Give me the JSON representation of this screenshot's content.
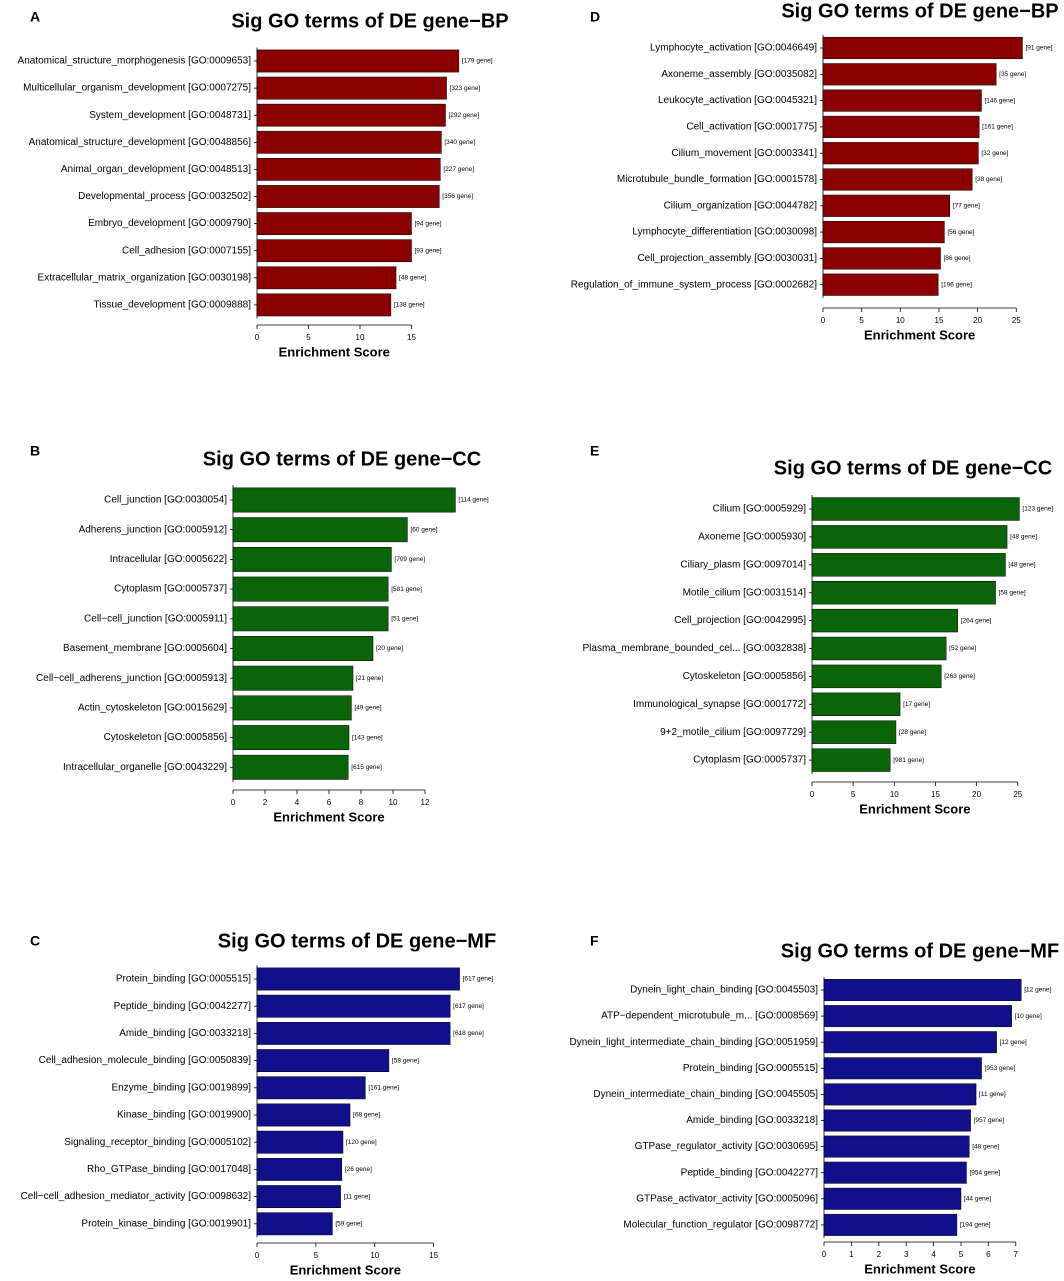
{
  "chart_data": [
    {
      "type": "bar",
      "panel": "A",
      "title": "Sig GO terms of DE gene−BP",
      "xlabel": "Enrichment Score",
      "color": "#8b0000",
      "categories": [
        "Anatomical_structure_morphogenesis [GO:0009653]",
        "Multicellular_organism_development [GO:0007275]",
        "System_development [GO:0048731]",
        "Anatomical_structure_development [GO:0048856]",
        "Animal_organ_development [GO:0048513]",
        "Developmental_process [GO:0032502]",
        "Embryo_development [GO:0009790]",
        "Cell_adhesion [GO:0007155]",
        "Extracellular_matrix_organization [GO:0030198]",
        "Tissue_development [GO:0009888]"
      ],
      "values": [
        19.6,
        18.4,
        18.3,
        17.9,
        17.8,
        17.7,
        15.0,
        15.0,
        13.5,
        13.0
      ],
      "annotations": [
        "[179 gene]",
        "[323 gene]",
        "[292 gene]",
        "[340 gene]",
        "[227 gene]",
        "[356 gene]",
        "[94 gene]",
        "[93 gene]",
        "[48 gene]",
        "[138 gene]"
      ],
      "xlim": [
        0,
        20
      ],
      "xticks": [
        0,
        5,
        10,
        15
      ]
    },
    {
      "type": "bar",
      "panel": "B",
      "title": "Sig GO terms of DE gene−CC",
      "xlabel": "Enrichment Score",
      "color": "#0a640a",
      "categories": [
        "Cell_junction [GO:0030054]",
        "Adherens_junction [GO:0005912]",
        "Intracellular [GO:0005622]",
        "Cytoplasm [GO:0005737]",
        "Cell−cell_junction [GO:0005911]",
        "Basement_membrane [GO:0005604]",
        "Cell−cell_adherens_junction [GO:0005913]",
        "Actin_cytoskeleton [GO:0015629]",
        "Cytoskeleton [GO:0005856]",
        "Intracellular_organelle [GO:0043229]"
      ],
      "values": [
        13.9,
        10.9,
        9.9,
        9.7,
        9.7,
        8.75,
        7.5,
        7.4,
        7.25,
        7.2
      ],
      "annotations": [
        "[114 gene]",
        "[60 gene]",
        "[709 gene]",
        "[581 gene]",
        "[51 gene]",
        "[20 gene]",
        "[21 gene]",
        "[49 gene]",
        "[143 gene]",
        "[615 gene]"
      ],
      "xlim": [
        0,
        14
      ],
      "xticks": [
        0,
        2,
        4,
        6,
        8,
        10,
        12
      ]
    },
    {
      "type": "bar",
      "panel": "C",
      "title": "Sig GO terms of DE gene−MF",
      "xlabel": "Enrichment Score",
      "color": "#10108c",
      "categories": [
        "Protein_binding [GO:0005515]",
        "Peptide_binding [GO:0042277]",
        "Amide_binding [GO:0033218]",
        "Cell_adhesion_molecule_binding [GO:0050839]",
        "Enzyme_binding [GO:0019899]",
        "Kinase_binding [GO:0019900]",
        "Signaling_receptor_binding [GO:0005102]",
        "Rho_GTPase_binding [GO:0017048]",
        "Cell−cell_adhesion_mediator_activity [GO:0098632]",
        "Protein_kinase_binding [GO:0019901]"
      ],
      "values": [
        17.2,
        16.4,
        16.4,
        11.2,
        9.2,
        7.9,
        7.3,
        7.2,
        7.1,
        6.4
      ],
      "annotations": [
        "[617 gene]",
        "[617 gene]",
        "[618 gene]",
        "[58 gene]",
        "[161 gene]",
        "[68 gene]",
        "[120 gene]",
        "[26 gene]",
        "[11 gene]",
        "[59 gene]"
      ],
      "xlim": [
        0,
        18
      ],
      "xticks": [
        0,
        5,
        10,
        15
      ]
    },
    {
      "type": "bar",
      "panel": "D",
      "title": "Sig GO terms of DE gene−BP",
      "xlabel": "Enrichment Score",
      "color": "#8b0000",
      "categories": [
        "Lymphocyte_activation [GO:0046649]",
        "Axoneme_assembly [GO:0035082]",
        "Leukocyte_activation [GO:0045321]",
        "Cell_activation [GO:0001775]",
        "Cilium_movement [GO:0003341]",
        "Microtubule_bundle_formation [GO:0001578]",
        "Cilium_organization [GO:0044782]",
        "Lymphocyte_differentiation [GO:0030098]",
        "Cell_projection_assembly [GO:0030031]",
        "Regulation_of_immune_system_process [GO:0002682]"
      ],
      "values": [
        25.8,
        22.4,
        20.5,
        20.2,
        20.1,
        19.3,
        16.4,
        15.7,
        15.2,
        14.9
      ],
      "annotations": [
        "[91 gene]",
        "[35 gene]",
        "[146 gene]",
        "[161 gene]",
        "[32 gene]",
        "[38 gene]",
        "[77 gene]",
        "[56 gene]",
        "[86 gene]",
        "[196 gene]"
      ],
      "xlim": [
        0,
        26
      ],
      "xticks": [
        0,
        5,
        10,
        15,
        20,
        25
      ]
    },
    {
      "type": "bar",
      "panel": "E",
      "title": "Sig GO terms of DE gene−CC",
      "xlabel": "Enrichment Score",
      "color": "#0a640a",
      "categories": [
        "Cilium [GO:0005929]",
        "Axoneme [GO:0005930]",
        "Ciliary_plasm [GO:0097014]",
        "Motile_cilium [GO:0031514]",
        "Cell_projection [GO:0042995]",
        "Plasma_membrane_bounded_cel... [GO:0032838]",
        "Cytoskeleton [GO:0005856]",
        "Immunological_synapse [GO:0001772]",
        "9+2_motile_cilium [GO:0097729]",
        "Cytoplasm [GO:0005737]"
      ],
      "values": [
        25.2,
        23.7,
        23.5,
        22.3,
        17.7,
        16.3,
        15.7,
        10.7,
        10.2,
        9.5
      ],
      "annotations": [
        "[123 gene]",
        "[48 gene]",
        "[48 gene]",
        "[58 gene]",
        "[264 gene]",
        "[52 gene]",
        "[263 gene]",
        "[17 gene]",
        "[28 gene]",
        "[981 gene]"
      ],
      "xlim": [
        0,
        26
      ],
      "xticks": [
        0,
        5,
        10,
        15,
        20,
        25
      ]
    },
    {
      "type": "bar",
      "panel": "F",
      "title": "Sig GO terms of DE gene−MF",
      "xlabel": "Enrichment Score",
      "color": "#10108c",
      "categories": [
        "Dynein_light_chain_binding [GO:0045503]",
        "ATP−dependent_microtubule_m... [GO:0008569]",
        "Dynein_light_intermediate_chain_binding [GO:0051959]",
        "Protein_binding [GO:0005515]",
        "Dynein_intermediate_chain_binding [GO:0045505]",
        "Amide_binding [GO:0033218]",
        "GTPase_regulator_activity [GO:0030695]",
        "Peptide_binding [GO:0042277]",
        "GTPase_activator_activity [GO:0005096]",
        "Molecular_function_regulator [GO:0098772]"
      ],
      "values": [
        7.2,
        6.85,
        6.3,
        5.75,
        5.55,
        5.35,
        5.3,
        5.2,
        5.0,
        4.85
      ],
      "annotations": [
        "[12 gene]",
        "[10 gene]",
        "[12 gene]",
        "[953 gene]",
        "[11 gene]",
        "[957 gene]",
        "[48 gene]",
        "[954 gene]",
        "[44 gene]",
        "[194 gene]"
      ],
      "xlim": [
        0,
        7.3
      ],
      "xticks": [
        0,
        1,
        2,
        3,
        4,
        5,
        6,
        7
      ]
    }
  ]
}
